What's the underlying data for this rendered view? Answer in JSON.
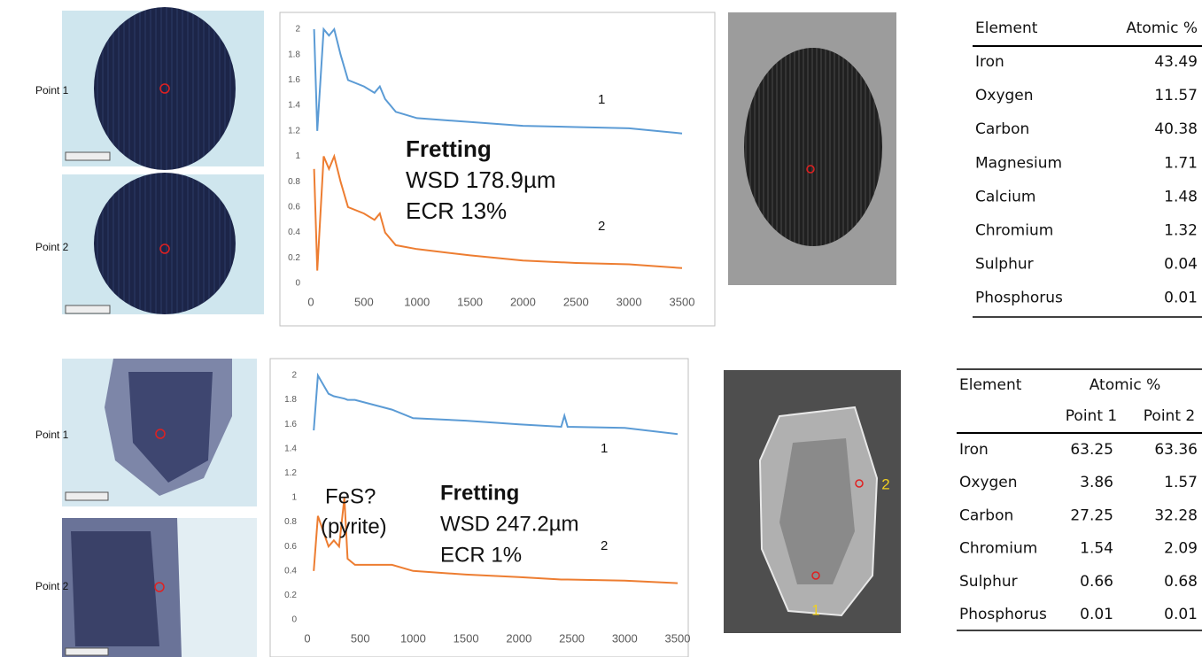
{
  "top": {
    "point_labels": [
      "Point 1",
      "Point 2"
    ],
    "table": {
      "header": [
        "Element",
        "Atomic %"
      ],
      "rows": [
        [
          "Iron",
          43.49
        ],
        [
          "Oxygen",
          11.57
        ],
        [
          "Carbon",
          40.38
        ],
        [
          "Magnesium",
          1.71
        ],
        [
          "Calcium",
          1.48
        ],
        [
          "Chromium",
          1.32
        ],
        [
          "Sulphur",
          0.04
        ],
        [
          "Phosphorus",
          0.01
        ]
      ]
    }
  },
  "bottom": {
    "point_labels": [
      "Point 1",
      "Point 2"
    ],
    "sem_labels": [
      "1",
      "2"
    ],
    "table": {
      "header": [
        "Element",
        "Atomic %"
      ],
      "subheader": [
        "Point 1",
        "Point 2"
      ],
      "rows": [
        [
          "Iron",
          63.25,
          63.36
        ],
        [
          "Oxygen",
          3.86,
          1.57
        ],
        [
          "Carbon",
          27.25,
          32.28
        ],
        [
          "Chromium",
          1.54,
          2.09
        ],
        [
          "Sulphur",
          0.66,
          0.68
        ],
        [
          "Phosphorus",
          0.01,
          0.01
        ]
      ]
    }
  },
  "chart_data": [
    {
      "type": "line",
      "annotations": [
        "Fretting",
        "WSD 178.9µm",
        "ECR 13%"
      ],
      "x": [
        30,
        60,
        120,
        170,
        220,
        280,
        350,
        500,
        600,
        650,
        700,
        800,
        1000,
        1500,
        2000,
        2500,
        3000,
        3500
      ],
      "series": [
        {
          "name": "1",
          "color": "#5b9bd5",
          "values": [
            2,
            1.2,
            2,
            1.95,
            2,
            1.8,
            1.6,
            1.55,
            1.5,
            1.55,
            1.45,
            1.35,
            1.3,
            1.27,
            1.24,
            1.23,
            1.22,
            1.18
          ]
        },
        {
          "name": "2",
          "color": "#ed7d31",
          "values": [
            0.9,
            0.1,
            1.0,
            0.9,
            1.0,
            0.8,
            0.6,
            0.55,
            0.5,
            0.55,
            0.4,
            0.3,
            0.27,
            0.22,
            0.18,
            0.16,
            0.15,
            0.12
          ]
        }
      ],
      "xlim": [
        0,
        3500
      ],
      "xticks": [
        0,
        500,
        1000,
        1500,
        2000,
        2500,
        3000,
        3500
      ],
      "ylim": [
        0,
        2
      ],
      "yticks": [
        0,
        0.2,
        0.4,
        0.6,
        0.8,
        1,
        1.2,
        1.4,
        1.6,
        1.8,
        2
      ]
    },
    {
      "type": "line",
      "annotations": [
        "FeS?",
        "(pyrite)",
        "Fretting",
        "WSD 247.2µm",
        "ECR 1%"
      ],
      "x": [
        60,
        100,
        200,
        250,
        300,
        350,
        380,
        450,
        800,
        1000,
        1500,
        2000,
        2400,
        2430,
        2460,
        3000,
        3500
      ],
      "series": [
        {
          "name": "1",
          "color": "#5b9bd5",
          "values": [
            1.55,
            2,
            1.85,
            1.83,
            1.82,
            1.81,
            1.8,
            1.8,
            1.72,
            1.65,
            1.63,
            1.6,
            1.58,
            1.67,
            1.58,
            1.57,
            1.52
          ]
        },
        {
          "name": "2",
          "color": "#ed7d31",
          "values": [
            0.4,
            0.85,
            0.6,
            0.65,
            0.6,
            1.0,
            0.5,
            0.45,
            0.45,
            0.4,
            0.37,
            0.35,
            0.33,
            0.33,
            0.33,
            0.32,
            0.3
          ]
        }
      ],
      "xlim": [
        0,
        3500
      ],
      "xticks": [
        0,
        500,
        1000,
        1500,
        2000,
        2500,
        3000,
        3500
      ],
      "ylim": [
        0,
        2
      ],
      "yticks": [
        0,
        0.2,
        0.4,
        0.6,
        0.8,
        1,
        1.2,
        1.4,
        1.6,
        1.8,
        2
      ]
    }
  ]
}
